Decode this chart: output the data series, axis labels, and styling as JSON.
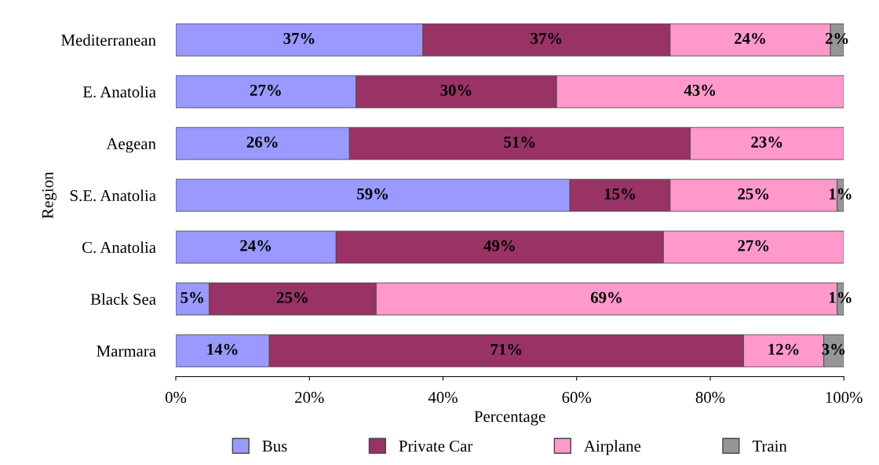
{
  "chart_data": {
    "type": "bar",
    "orientation": "horizontal",
    "stacked": true,
    "ylabel": "Region",
    "xlabel": "Percentage",
    "categories": [
      "Mediterranean",
      "E. Anatolia",
      "Aegean",
      "S.E. Anatolia",
      "C. Anatolia",
      "Black Sea",
      "Marmara"
    ],
    "series": [
      {
        "name": "Bus",
        "color": "#9999ff",
        "values": [
          37,
          27,
          26,
          59,
          24,
          5,
          14
        ],
        "value_labels": [
          "37%",
          "27%",
          "26%",
          "59%",
          "24%",
          "5%",
          "14%"
        ]
      },
      {
        "name": "Private Car",
        "color": "#993366",
        "values": [
          37,
          30,
          51,
          15,
          49,
          25,
          71
        ],
        "value_labels": [
          "37%",
          "30%",
          "51%",
          "15%",
          "49%",
          "25%",
          "71%"
        ]
      },
      {
        "name": "Airplane",
        "color": "#ff99cc",
        "values": [
          24,
          43,
          23,
          25,
          27,
          69,
          12
        ],
        "value_labels": [
          "24%",
          "43%",
          "23%",
          "25%",
          "27%",
          "69%",
          "12%"
        ]
      },
      {
        "name": "Train",
        "color": "#969696",
        "values": [
          2,
          null,
          null,
          1,
          null,
          1,
          3
        ],
        "value_labels": [
          "2%",
          null,
          null,
          "1%",
          null,
          "1%",
          "3%"
        ]
      }
    ],
    "xlim": [
      0,
      100
    ],
    "xticks": [
      {
        "value": 0,
        "label": "0%"
      },
      {
        "value": 20,
        "label": "20%"
      },
      {
        "value": 40,
        "label": "40%"
      },
      {
        "value": 60,
        "label": "60%"
      },
      {
        "value": 80,
        "label": "80%"
      },
      {
        "value": 100,
        "label": "100%"
      }
    ],
    "grid": false,
    "legend": "bottom"
  }
}
